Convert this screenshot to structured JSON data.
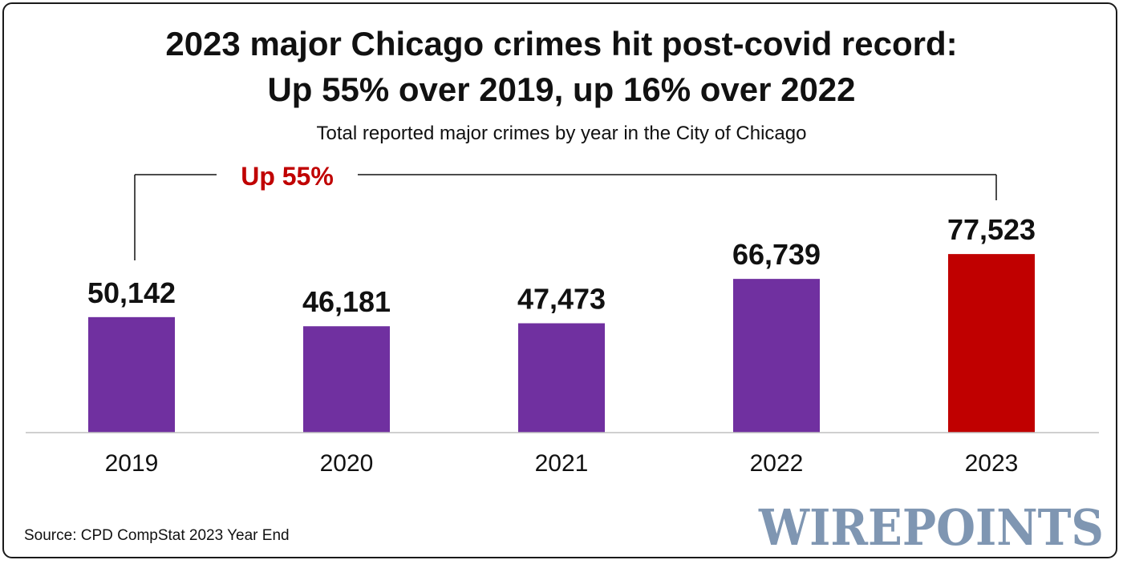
{
  "chart_data": {
    "type": "bar",
    "title": "2023 major Chicago crimes hit post-covid record:",
    "title_line2": "Up 55% over 2019, up 16% over 2022",
    "subtitle": "Total reported major crimes by year in the City of Chicago",
    "categories": [
      "2019",
      "2020",
      "2021",
      "2022",
      "2023"
    ],
    "values": [
      50142,
      46181,
      47473,
      66739,
      77523
    ],
    "value_labels": [
      "50,142",
      "46,181",
      "47,473",
      "66,739",
      "77,523"
    ],
    "ylim": [
      0,
      100000
    ],
    "grid": false,
    "colors": [
      "#7030a0",
      "#7030a0",
      "#7030a0",
      "#7030a0",
      "#c00000"
    ],
    "annotation": {
      "text": "Up 55%",
      "from": "2019",
      "to": "2023",
      "color": "#c00000"
    },
    "source": "Source: CPD CompStat 2023 Year End",
    "watermark": "WIREPOINTS",
    "watermark_color": "#7f96b2",
    "axis_color": "#bfbfbf",
    "text_color": "#111111"
  }
}
